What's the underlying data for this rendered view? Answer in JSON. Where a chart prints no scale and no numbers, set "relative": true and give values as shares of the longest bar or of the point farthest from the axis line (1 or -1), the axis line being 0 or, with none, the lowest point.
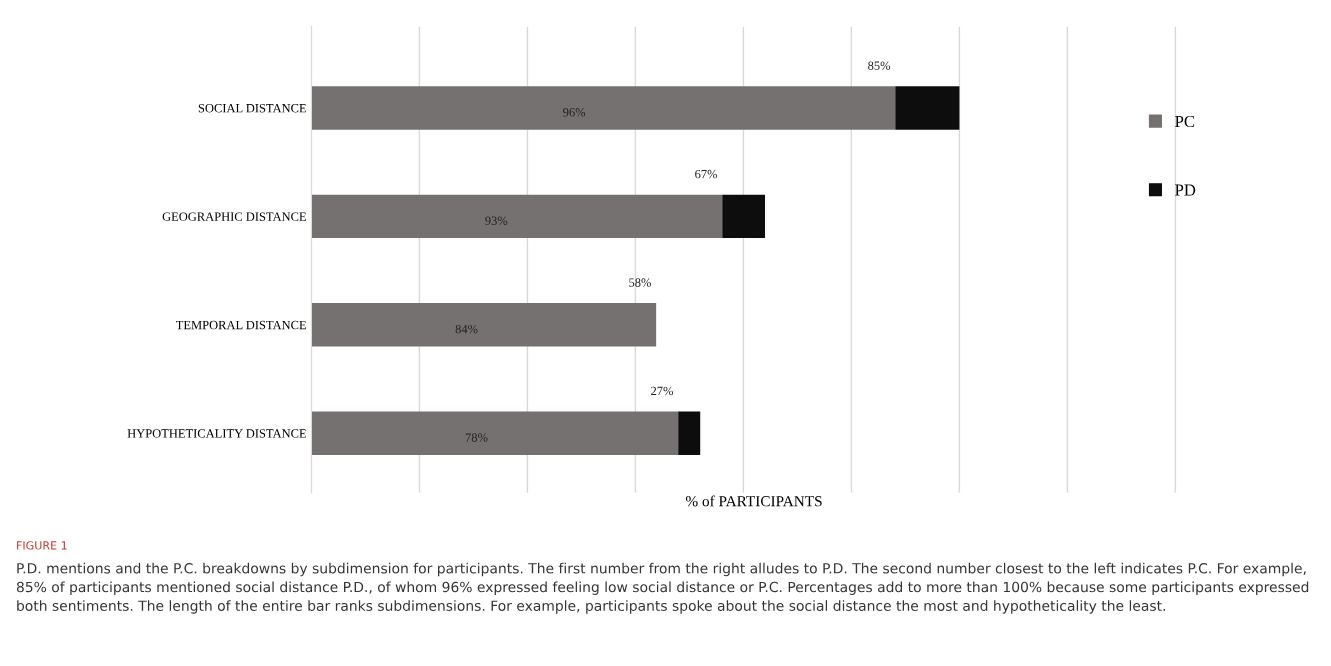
{
  "chart_data": {
    "type": "bar",
    "orientation": "horizontal",
    "stacked": true,
    "relative": true,
    "title": "FIGURE 1",
    "xlabel": "% of PARTICIPANTS",
    "categories": [
      "SOCIAL DISTANCE",
      "GEOGRAPHIC DISTANCE",
      "TEMPORAL DISTANCE",
      "HYPOTHETICALITY DISTANCE"
    ],
    "series": [
      {
        "name": "PC",
        "color": "#767171",
        "values": [
          0.901,
          0.634,
          0.532,
          0.566
        ]
      },
      {
        "name": "PD",
        "color": "#0d0d0d",
        "values": [
          0.099,
          0.066,
          0.0,
          0.034
        ]
      }
    ],
    "legend": "right",
    "grid": "x",
    "annotations": [
      "96%",
      "85%",
      "93%",
      "67%",
      "84%",
      "58%",
      "78%",
      "27%",
      "P.D. mentions and the P.C. breakdowns by subdimension for participants. The first number from the right alludes to P.D. The second number closest to the left indicates P.C. For example, 85% of participants mentioned social distance P.D., of whom 96% expressed feeling low social distance or P.C. Percentages add to more than 100% because some participants expressed both sentiments. The length of the entire bar ranks subdimensions. For example, participants spoke about the social distance the most and hypotheticality the least."
    ]
  }
}
